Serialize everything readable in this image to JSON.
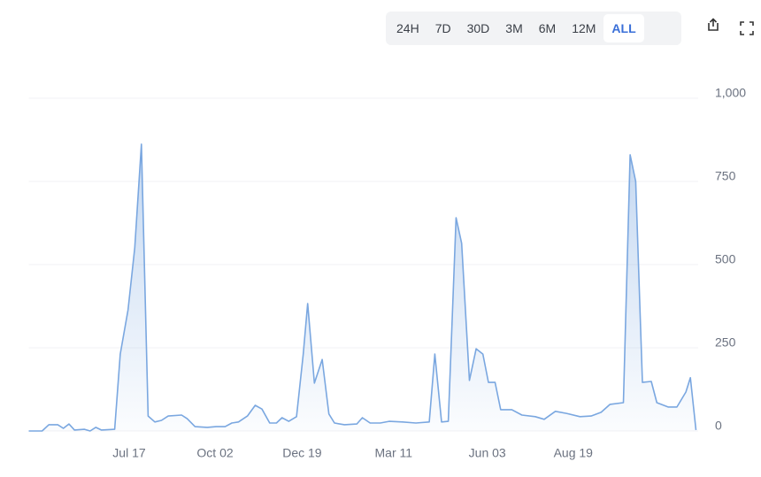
{
  "toolbar": {
    "ranges": [
      "24H",
      "7D",
      "30D",
      "3M",
      "6M",
      "12M",
      "ALL"
    ],
    "selected_index": 6
  },
  "chart_data": {
    "type": "area",
    "x": [
      0,
      12,
      18,
      26,
      31,
      36,
      41,
      50,
      55,
      60,
      65,
      77,
      82,
      89,
      95,
      101,
      107,
      113,
      119,
      125,
      137,
      142,
      149,
      160,
      168,
      176,
      182,
      188,
      196,
      203,
      209,
      216,
      222,
      227,
      233,
      240,
      246,
      250,
      256,
      263,
      269,
      274,
      283,
      294,
      299,
      306,
      315,
      323,
      335,
      347,
      359,
      364,
      370,
      376,
      383,
      388,
      395,
      401,
      407,
      412,
      418,
      423,
      433,
      442,
      454,
      462,
      472,
      482,
      494,
      504,
      513,
      521,
      533,
      539,
      544,
      550,
      558,
      563,
      573,
      581,
      589,
      593,
      598
    ],
    "values": [
      0,
      0,
      19,
      19,
      8,
      21,
      3,
      5,
      0,
      11,
      3,
      5,
      231,
      364,
      551,
      862,
      45,
      27,
      32,
      45,
      48,
      37,
      13,
      11,
      13,
      13,
      24,
      27,
      45,
      77,
      66,
      24,
      24,
      40,
      29,
      43,
      231,
      383,
      144,
      215,
      51,
      24,
      19,
      21,
      40,
      24,
      24,
      29,
      27,
      24,
      27,
      231,
      27,
      29,
      641,
      564,
      152,
      247,
      231,
      146,
      146,
      64,
      64,
      48,
      43,
      35,
      59,
      53,
      43,
      45,
      56,
      80,
      85,
      830,
      750,
      146,
      149,
      85,
      72,
      72,
      117,
      160,
      3
    ],
    "color": "#7aa7e0",
    "xlim": [
      0,
      600
    ],
    "xticks": [
      {
        "value": 90,
        "label": "Jul 17"
      },
      {
        "value": 167,
        "label": "Oct 02"
      },
      {
        "value": 245,
        "label": "Dec 19"
      },
      {
        "value": 327,
        "label": "Mar 11"
      },
      {
        "value": 411,
        "label": "Jun 03"
      },
      {
        "value": 488,
        "label": "Aug 19"
      }
    ],
    "ylim": [
      0,
      1000
    ],
    "yticks": [
      0,
      250,
      500,
      750,
      {
        "value": 1000,
        "label": "1,000"
      }
    ],
    "grid": true
  }
}
